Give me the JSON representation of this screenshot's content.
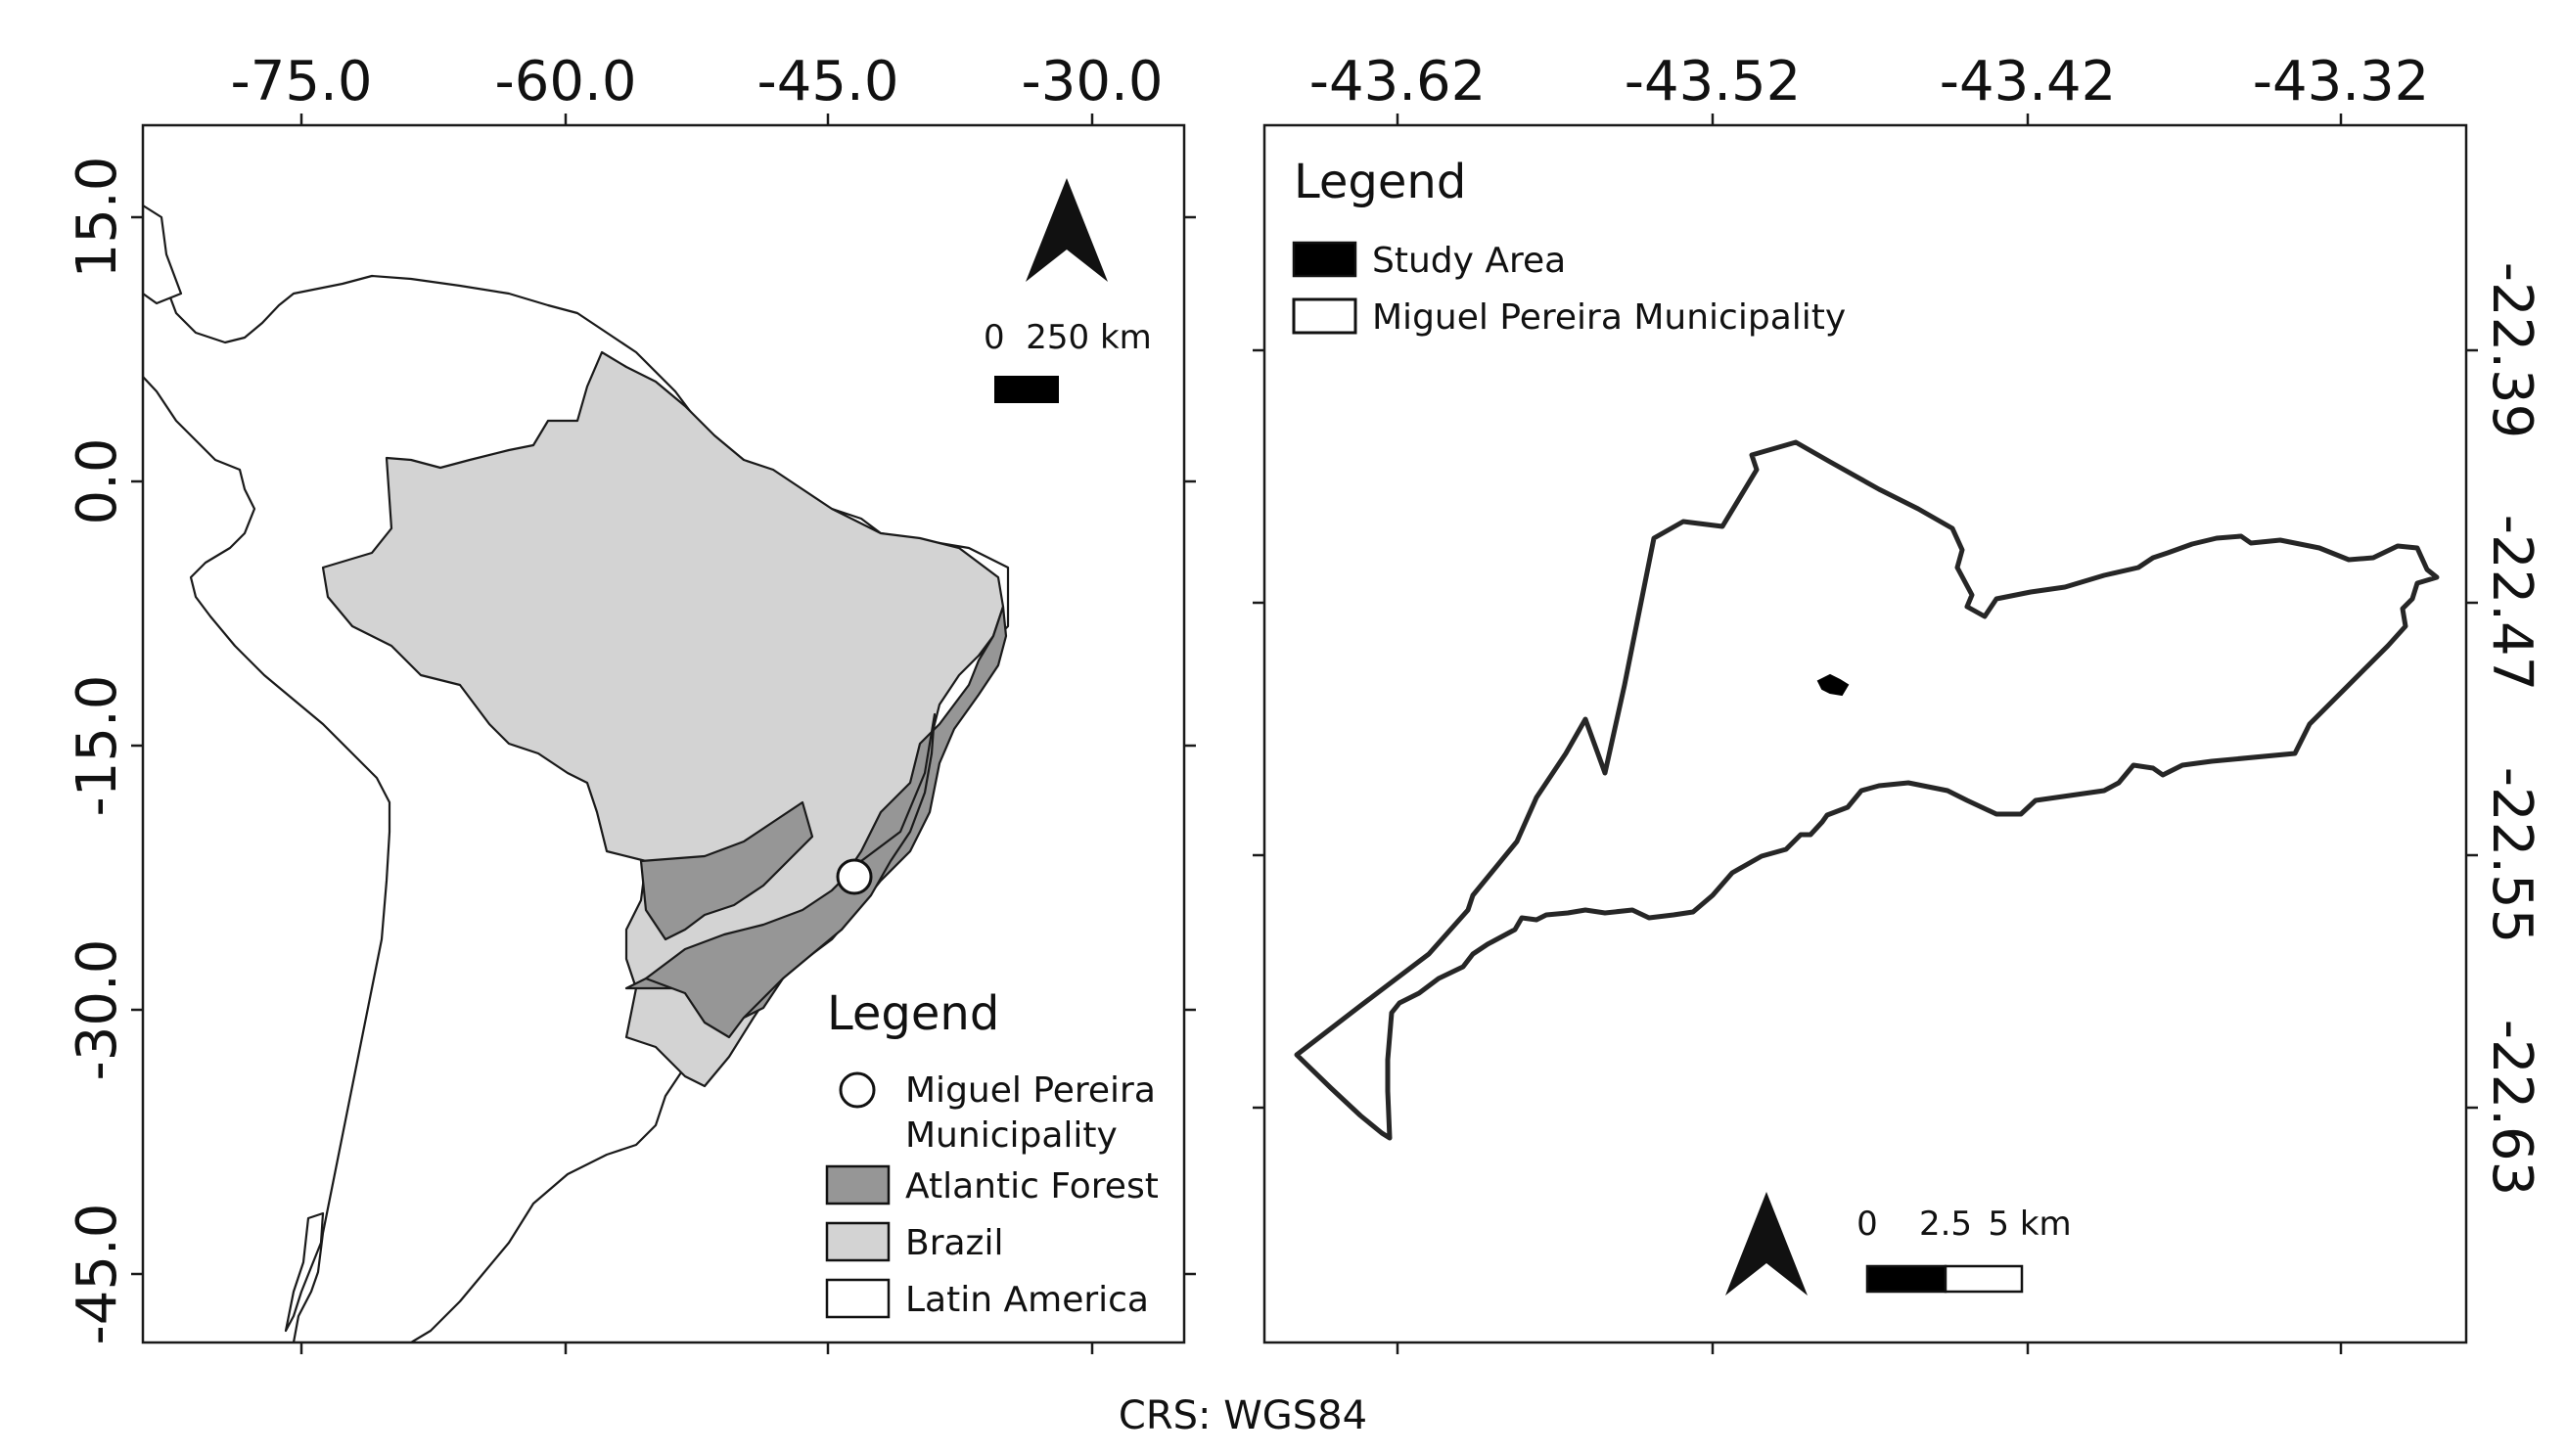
{
  "left_map": {
    "x_ticks": [
      "-75.0",
      "-60.0",
      "-45.0",
      "-30.0"
    ],
    "y_ticks": [
      "15.0",
      "0.0",
      "-15.0",
      "-30.0",
      "-45.0"
    ],
    "scale_label": "0  250 km",
    "legend": {
      "title": "Legend",
      "items": [
        {
          "label": "Miguel Pereira",
          "label2": "Municipality",
          "symbol": "circle"
        },
        {
          "label": "Atlantic Forest",
          "symbol": "box",
          "color": "#969696"
        },
        {
          "label": "Brazil",
          "symbol": "box",
          "color": "#d3d3d3"
        },
        {
          "label": "Latin America",
          "symbol": "box",
          "color": "#ffffff"
        }
      ]
    }
  },
  "right_map": {
    "x_ticks": [
      "-43.62",
      "-43.52",
      "-43.42",
      "-43.32"
    ],
    "y_ticks": [
      "-22.39",
      "-22.47",
      "-22.55",
      "-22.63"
    ],
    "legend": {
      "title": "Legend",
      "items": [
        {
          "label": "Study Area",
          "symbol": "filled-box",
          "color": "#000000"
        },
        {
          "label": "Miguel Pereira Municipality",
          "symbol": "outline-box",
          "color": "#ffffff"
        }
      ]
    },
    "scale": {
      "labels": [
        "0",
        "2.5",
        "5 km"
      ]
    }
  },
  "footer": {
    "crs": "CRS: WGS84"
  }
}
